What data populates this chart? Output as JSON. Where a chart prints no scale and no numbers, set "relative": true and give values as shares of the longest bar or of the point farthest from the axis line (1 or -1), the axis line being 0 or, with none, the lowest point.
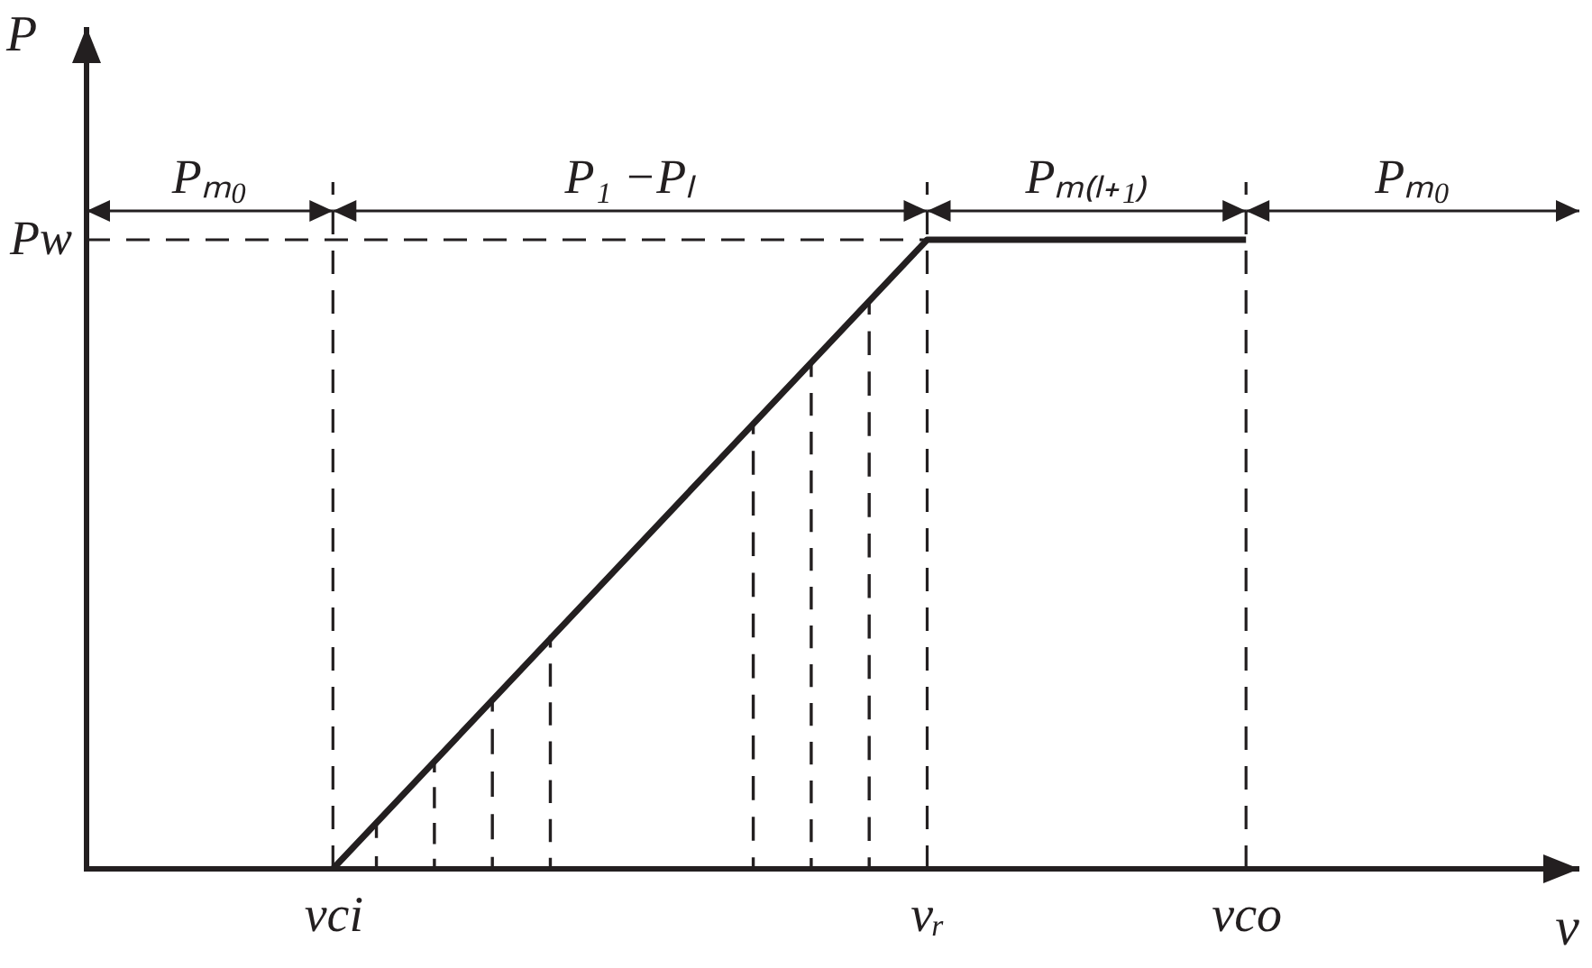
{
  "chart_data": {
    "type": "line",
    "relative": true,
    "xlabel": "v",
    "ylabel": "P",
    "categories": [
      null,
      null,
      null,
      null,
      null,
      null,
      null,
      null,
      null,
      null,
      null,
      null,
      null,
      null,
      null,
      null,
      null,
      "vci",
      null,
      null,
      null,
      null,
      null,
      null,
      null,
      null,
      null,
      null,
      null,
      null,
      null,
      null,
      null,
      null,
      null,
      null,
      null,
      null,
      null,
      null,
      null,
      null,
      null,
      null,
      null,
      null,
      null,
      null,
      null,
      null,
      null,
      null,
      null,
      null,
      null,
      null,
      null,
      null,
      "vᵣ",
      null,
      null,
      null,
      null,
      null,
      null,
      null,
      null,
      null,
      null,
      null,
      null,
      null,
      null,
      null,
      null,
      null,
      null,
      null,
      null,
      null,
      "vco",
      null,
      null,
      null,
      null,
      null,
      null,
      null,
      null,
      null,
      null,
      null,
      null,
      null,
      null,
      null,
      null,
      null,
      null,
      null,
      null,
      null,
      null,
      null
    ],
    "line_style": "solid",
    "series": [
      {
        "color": "#231f20",
        "x": [
          "vci",
          "vᵣ",
          "vco"
        ],
        "values": [
          0,
          1,
          1
        ]
      },
      {
        "type": "bar",
        "color": "#231f20",
        "line_style": "dashed",
        "values": [
          null,
          null,
          null,
          null,
          null,
          null,
          null,
          null,
          null,
          null,
          null,
          null,
          null,
          null,
          null,
          null,
          null,
          null,
          null,
          null,
          0.07,
          null,
          null,
          null,
          0.17,
          null,
          null,
          null,
          0.27,
          null,
          null,
          null,
          0.37,
          null,
          null,
          null,
          null,
          null,
          null,
          null,
          null,
          null,
          null,
          null,
          null,
          null,
          0.71,
          null,
          null,
          null,
          0.8,
          null,
          null,
          null,
          0.9,
          null,
          null,
          null,
          null,
          null,
          null,
          null,
          null,
          null,
          null,
          null,
          null,
          null,
          null,
          null,
          null,
          null,
          null,
          null,
          null,
          null,
          null,
          null,
          null,
          null,
          null,
          null,
          null,
          null,
          null,
          null,
          null,
          null,
          null,
          null,
          null,
          null,
          null,
          null,
          null,
          null,
          null,
          null,
          null,
          null,
          null,
          null,
          null,
          null
        ]
      }
    ],
    "ref_lines": [
      {
        "axis": "x",
        "value": "vci",
        "line_style": "dashed",
        "color": "#231f20"
      },
      {
        "axis": "x",
        "value": "vᵣ",
        "line_style": "dashed",
        "color": "#231f20"
      },
      {
        "axis": "x",
        "value": "vco",
        "line_style": "dashed",
        "color": "#231f20"
      },
      {
        "axis": "y",
        "value": 1,
        "label": "Pw",
        "line_style": "dashed",
        "color": "#231f20"
      }
    ],
    "annotations": [
      "Pₘ₀",
      "P₁ −Pₗ",
      "Pₘ₍ₗ₊₁₎",
      "Pₘ₀"
    ]
  }
}
